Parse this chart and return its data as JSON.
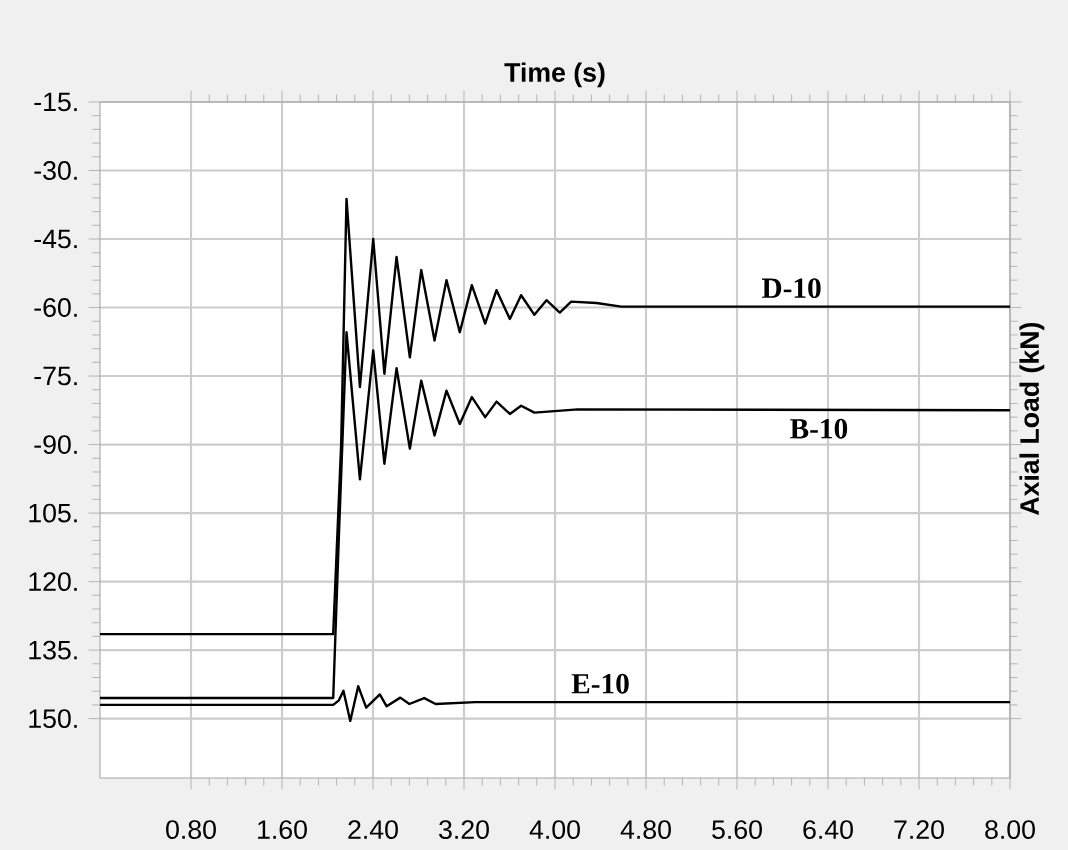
{
  "chart_data": {
    "type": "line",
    "xlabel": "Time (s)",
    "ylabel": "Axial Load (kN)",
    "xlim": [
      0,
      8.0
    ],
    "ylim": [
      -163,
      -15
    ],
    "xticks": [
      {
        "value": 0.8,
        "label": "0.80"
      },
      {
        "value": 1.6,
        "label": "1.60"
      },
      {
        "value": 2.4,
        "label": "2.40"
      },
      {
        "value": 3.2,
        "label": "3.20"
      },
      {
        "value": 4.0,
        "label": "4.00"
      },
      {
        "value": 4.8,
        "label": "4.80"
      },
      {
        "value": 5.6,
        "label": "5.60"
      },
      {
        "value": 6.4,
        "label": "6.40"
      },
      {
        "value": 7.2,
        "label": "7.20"
      },
      {
        "value": 8.0,
        "label": "8.00"
      }
    ],
    "yticks": [
      {
        "value": -15,
        "label": "-15."
      },
      {
        "value": -30,
        "label": "-30."
      },
      {
        "value": -45,
        "label": "-45."
      },
      {
        "value": -60,
        "label": "-60."
      },
      {
        "value": -75,
        "label": "-75."
      },
      {
        "value": -90,
        "label": "-90."
      },
      {
        "value": -105,
        "label": "105."
      },
      {
        "value": -120,
        "label": "120."
      },
      {
        "value": -135,
        "label": "135."
      },
      {
        "value": -150,
        "label": "150."
      }
    ],
    "grid": true,
    "marker": "none",
    "line_style": "solid",
    "series": [
      {
        "name": "D-10",
        "color": "#000000",
        "x": [
          0,
          2.05,
          2.12,
          2.167,
          2.285,
          2.402,
          2.5,
          2.607,
          2.724,
          2.824,
          2.941,
          3.046,
          3.163,
          3.269,
          3.386,
          3.486,
          3.603,
          3.702,
          3.819,
          3.925,
          4.042,
          4.142,
          4.364,
          4.582,
          8.0
        ],
        "values": [
          -131.5,
          -131.5,
          -90,
          -36.2,
          -77.4,
          -45.0,
          -74.5,
          -48.9,
          -70.9,
          -51.8,
          -67.2,
          -54.0,
          -65.4,
          -55.1,
          -63.5,
          -56.2,
          -62.5,
          -57.3,
          -61.6,
          -58.4,
          -61.1,
          -58.7,
          -59.0,
          -59.8,
          -59.8
        ]
      },
      {
        "name": "B-10",
        "color": "#000000",
        "x": [
          0,
          2.05,
          2.1,
          2.167,
          2.285,
          2.402,
          2.5,
          2.607,
          2.724,
          2.824,
          2.941,
          3.046,
          3.163,
          3.269,
          3.386,
          3.486,
          3.603,
          3.702,
          3.819,
          4.2,
          8.0
        ],
        "values": [
          -145.5,
          -145.5,
          -110,
          -65.4,
          -97.6,
          -69.4,
          -94.2,
          -73.3,
          -90.9,
          -76.0,
          -88.0,
          -78.2,
          -85.5,
          -79.6,
          -84.0,
          -80.6,
          -83.3,
          -81.5,
          -83.0,
          -82.3,
          -82.5
        ]
      },
      {
        "name": "E-10",
        "color": "#000000",
        "x": [
          0,
          2.05,
          2.1,
          2.14,
          2.2,
          2.27,
          2.34,
          2.46,
          2.52,
          2.64,
          2.72,
          2.85,
          2.95,
          3.3,
          8.0
        ],
        "values": [
          -147,
          -147,
          -146,
          -143.9,
          -150.5,
          -142.9,
          -147.6,
          -144.7,
          -147.3,
          -145.4,
          -146.8,
          -145.5,
          -146.8,
          -146.4,
          -146.4
        ]
      }
    ]
  }
}
